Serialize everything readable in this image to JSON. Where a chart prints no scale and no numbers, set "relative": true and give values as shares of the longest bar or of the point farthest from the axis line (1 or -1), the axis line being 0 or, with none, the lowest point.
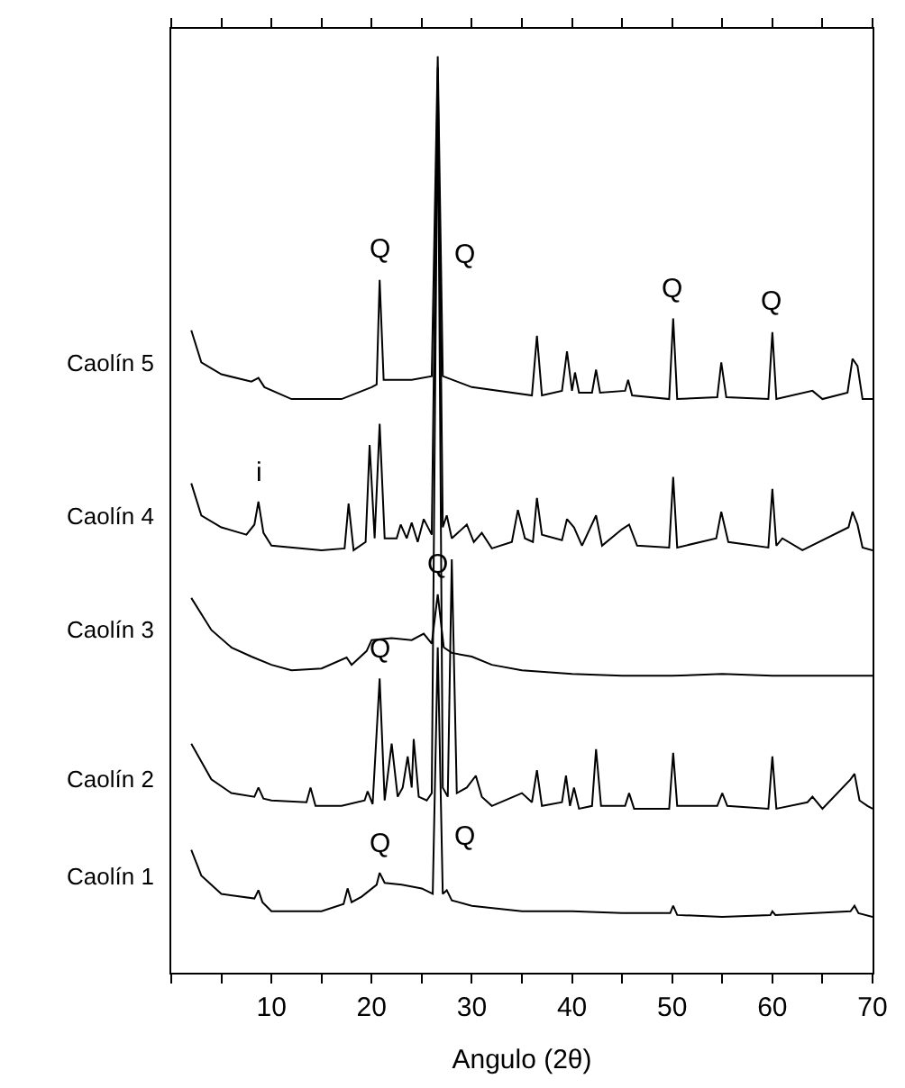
{
  "chart_data": {
    "type": "line",
    "relative": true,
    "xlabel": "Angulo (2θ)",
    "xlim": [
      0,
      70
    ],
    "xticks": [
      {
        "value": 0,
        "label": null
      },
      {
        "value": 5,
        "label": null
      },
      10,
      {
        "value": 15,
        "label": null
      },
      20,
      {
        "value": 25,
        "label": null
      },
      30,
      {
        "value": 35,
        "label": null
      },
      40,
      {
        "value": 45,
        "label": null
      },
      50,
      {
        "value": 55,
        "label": null
      },
      60,
      {
        "value": 65,
        "label": null
      },
      70
    ],
    "tick_labels": "x",
    "legend": false,
    "marker": "none",
    "line_style": "solid",
    "series": [
      {
        "name": "Caolín 5",
        "color": "#000000",
        "x": [
          2,
          3,
          5,
          8,
          8.7,
          9.3,
          12,
          17,
          20,
          20.5,
          20.8,
          21.2,
          24,
          26,
          26.6,
          27.1,
          30,
          36,
          36.5,
          37,
          39,
          39.5,
          40,
          40.3,
          40.7,
          42,
          42.4,
          42.8,
          45.3,
          45.6,
          46,
          49.7,
          50.1,
          50.5,
          54.5,
          54.9,
          55.4,
          59.6,
          60,
          60.4,
          64,
          65,
          67.5,
          68,
          68.5,
          69,
          70
        ],
        "values": [
          0.701,
          0.666,
          0.653,
          0.645,
          0.649,
          0.639,
          0.626,
          0.626,
          0.639,
          0.642,
          0.756,
          0.647,
          0.647,
          0.651,
          1.0,
          0.651,
          0.639,
          0.63,
          0.695,
          0.63,
          0.635,
          0.678,
          0.635,
          0.655,
          0.633,
          0.633,
          0.658,
          0.633,
          0.635,
          0.647,
          0.63,
          0.626,
          0.714,
          0.626,
          0.628,
          0.666,
          0.628,
          0.626,
          0.699,
          0.626,
          0.635,
          0.626,
          0.633,
          0.67,
          0.662,
          0.626,
          0.626
        ]
      },
      {
        "name": "Caolín 4",
        "color": "#000000",
        "x": [
          2,
          3,
          5,
          7.5,
          8.3,
          8.7,
          9.2,
          10,
          15,
          17.3,
          17.7,
          18.2,
          19.4,
          19.8,
          20.3,
          20.8,
          21.3,
          22.5,
          22.9,
          23.5,
          24,
          24.6,
          25.2,
          26,
          26.6,
          27.1,
          27.5,
          28,
          29.5,
          30.2,
          31,
          32,
          34,
          34.6,
          35.3,
          36.1,
          36.5,
          37,
          39,
          39.5,
          40.2,
          41,
          42.4,
          43,
          45,
          45.7,
          46.5,
          49.7,
          50.1,
          50.5,
          54.4,
          54.9,
          55.6,
          59.6,
          60,
          60.4,
          61,
          63,
          67.6,
          68,
          68.5,
          69,
          70
        ],
        "values": [
          0.534,
          0.499,
          0.486,
          0.478,
          0.489,
          0.514,
          0.48,
          0.466,
          0.461,
          0.463,
          0.512,
          0.461,
          0.47,
          0.576,
          0.474,
          0.599,
          0.474,
          0.474,
          0.489,
          0.474,
          0.491,
          0.47,
          0.495,
          0.478,
          0.988,
          0.486,
          0.499,
          0.474,
          0.489,
          0.47,
          0.48,
          0.463,
          0.47,
          0.505,
          0.474,
          0.47,
          0.518,
          0.478,
          0.472,
          0.495,
          0.486,
          0.466,
          0.499,
          0.466,
          0.484,
          0.489,
          0.466,
          0.464,
          0.541,
          0.464,
          0.474,
          0.503,
          0.47,
          0.464,
          0.528,
          0.466,
          0.474,
          0.461,
          0.486,
          0.503,
          0.489,
          0.464,
          0.461
        ]
      },
      {
        "name": "Caolín 3",
        "color": "#000000",
        "x": [
          2,
          4,
          6,
          8,
          10,
          12,
          15,
          17.5,
          18,
          19.5,
          20,
          22,
          24,
          25.2,
          26,
          26.6,
          27.2,
          28,
          30,
          32,
          35,
          40,
          45,
          50,
          55,
          60,
          65,
          70
        ],
        "values": [
          0.409,
          0.374,
          0.355,
          0.345,
          0.336,
          0.33,
          0.332,
          0.344,
          0.336,
          0.351,
          0.363,
          0.365,
          0.363,
          0.37,
          0.359,
          0.413,
          0.355,
          0.349,
          0.345,
          0.336,
          0.33,
          0.326,
          0.324,
          0.324,
          0.326,
          0.324,
          0.324,
          0.324
        ]
      },
      {
        "name": "Caolín 2",
        "color": "#000000",
        "x": [
          2,
          4,
          6,
          8.3,
          8.7,
          9.2,
          10,
          13.5,
          13.9,
          14.4,
          17,
          19.3,
          19.6,
          20.1,
          20.8,
          21.3,
          22,
          22.6,
          23.1,
          23.6,
          24.0,
          24.2,
          24.7,
          25.5,
          26,
          26.6,
          27.1,
          27.6,
          28,
          28.5,
          29.5,
          30.4,
          31,
          32,
          35,
          36,
          36.5,
          37,
          39,
          39.4,
          39.8,
          40.2,
          40.7,
          42,
          42.4,
          42.9,
          45.3,
          45.7,
          46.2,
          49.7,
          50.1,
          50.5,
          54.5,
          55,
          55.5,
          59.6,
          60,
          60.4,
          63.5,
          64,
          65,
          67.8,
          68.2,
          68.7,
          69.5,
          70
        ],
        "values": [
          0.25,
          0.211,
          0.196,
          0.192,
          0.202,
          0.19,
          0.188,
          0.186,
          0.202,
          0.182,
          0.182,
          0.188,
          0.198,
          0.184,
          0.321,
          0.188,
          0.25,
          0.192,
          0.202,
          0.236,
          0.202,
          0.255,
          0.192,
          0.188,
          0.196,
          0.969,
          0.202,
          0.192,
          0.451,
          0.196,
          0.202,
          0.215,
          0.192,
          0.182,
          0.196,
          0.186,
          0.221,
          0.182,
          0.186,
          0.215,
          0.182,
          0.202,
          0.179,
          0.182,
          0.244,
          0.182,
          0.182,
          0.196,
          0.179,
          0.179,
          0.24,
          0.182,
          0.182,
          0.196,
          0.182,
          0.179,
          0.236,
          0.179,
          0.186,
          0.192,
          0.179,
          0.211,
          0.217,
          0.188,
          0.182,
          0.179
        ]
      },
      {
        "name": "Caolín 1",
        "color": "#000000",
        "x": [
          2,
          3,
          5,
          8.3,
          8.7,
          9.1,
          10,
          15,
          17.2,
          17.6,
          18,
          19,
          20.5,
          20.8,
          21.3,
          23,
          25,
          26.1,
          26.6,
          27.1,
          27.5,
          28,
          30,
          35,
          40,
          45,
          49.8,
          50.1,
          50.5,
          55,
          59.8,
          60,
          60.3,
          67.8,
          68.2,
          68.6,
          70
        ],
        "values": [
          0.134,
          0.106,
          0.086,
          0.081,
          0.09,
          0.077,
          0.067,
          0.067,
          0.075,
          0.092,
          0.077,
          0.083,
          0.096,
          0.109,
          0.098,
          0.096,
          0.092,
          0.086,
          0.355,
          0.086,
          0.09,
          0.079,
          0.073,
          0.067,
          0.067,
          0.065,
          0.065,
          0.073,
          0.063,
          0.061,
          0.063,
          0.067,
          0.063,
          0.067,
          0.073,
          0.065,
          0.061
        ]
      }
    ],
    "annotations": [
      {
        "text": "Q",
        "x": 20.8,
        "y": 0.756
      },
      {
        "text": "Q",
        "x": 26.91,
        "y": 0.783
      },
      {
        "text": "Q",
        "x": 50.1,
        "y": 0.714
      },
      {
        "text": "Q",
        "x": 60,
        "y": 0.699
      },
      {
        "text": "i",
        "x": 8.7,
        "y": 0.514
      },
      {
        "text": "Q",
        "x": 26.6,
        "y": 0.413
      },
      {
        "text": "Q",
        "x": 20.8,
        "y": 0.321
      },
      {
        "text": "Q",
        "x": 20.8,
        "y": 0.109
      },
      {
        "text": "Q",
        "x": 26.985,
        "y": 0.148
      }
    ]
  }
}
